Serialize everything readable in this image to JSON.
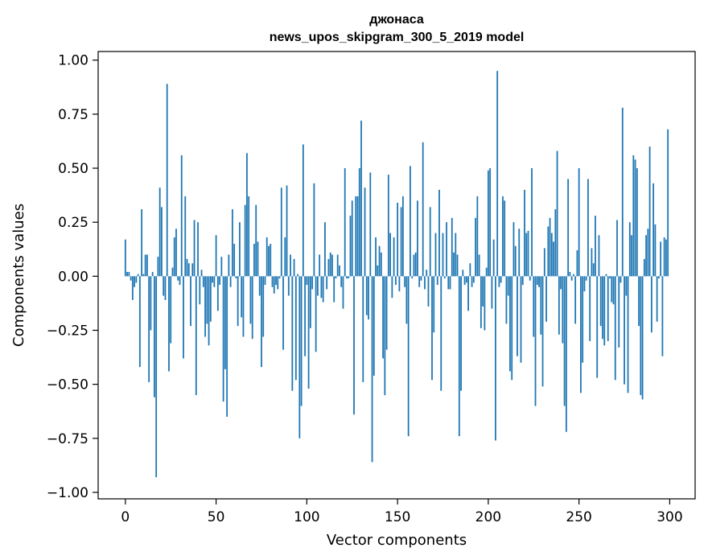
{
  "chart_data": {
    "type": "bar",
    "title": "джонаса",
    "subtitle": "news_upos_skipgram_300_5_2019 model",
    "xlabel": "Vector components",
    "ylabel": "Components values",
    "xlim": [
      -15,
      314
    ],
    "ylim": [
      -1.03,
      1.04
    ],
    "xticks": [
      0,
      50,
      100,
      150,
      200,
      250,
      300
    ],
    "xtick_labels": [
      "0",
      "50",
      "100",
      "150",
      "200",
      "250",
      "300"
    ],
    "yticks": [
      1.0,
      0.75,
      0.5,
      0.25,
      0.0,
      -0.25,
      -0.5,
      -0.75,
      -1.0
    ],
    "ytick_labels": [
      "1.00",
      "0.75",
      "0.50",
      "0.25",
      "0.00",
      "−0.25",
      "−0.50",
      "−0.75",
      "−1.00"
    ],
    "grid": false,
    "bar_color": "#1f77b4",
    "values": [
      0.17,
      0.02,
      0.02,
      -0.02,
      -0.11,
      -0.05,
      -0.03,
      0.01,
      -0.42,
      0.31,
      0.01,
      0.1,
      0.1,
      -0.49,
      -0.25,
      0.02,
      -0.56,
      -0.93,
      0.09,
      0.41,
      0.32,
      -0.09,
      -0.11,
      0.89,
      -0.44,
      -0.31,
      0.04,
      0.18,
      0.22,
      -0.02,
      -0.04,
      0.56,
      -0.38,
      0.37,
      0.08,
      0.06,
      -0.23,
      0.06,
      0.26,
      -0.55,
      0.25,
      -0.13,
      0.03,
      -0.05,
      -0.28,
      -0.22,
      -0.32,
      -0.21,
      -0.03,
      -0.05,
      0.19,
      -0.16,
      -0.04,
      0.09,
      -0.58,
      -0.43,
      -0.65,
      0.1,
      -0.05,
      0.31,
      0.15,
      -0.01,
      -0.23,
      0.25,
      -0.19,
      -0.28,
      0.33,
      0.57,
      0.37,
      -0.22,
      -0.29,
      0.15,
      0.33,
      0.16,
      -0.09,
      -0.42,
      -0.28,
      -0.04,
      0.18,
      0.14,
      0.15,
      -0.05,
      -0.08,
      -0.04,
      -0.06,
      -0.01,
      0.41,
      -0.34,
      0.18,
      0.42,
      -0.09,
      0.1,
      -0.53,
      0.08,
      -0.48,
      0.01,
      -0.75,
      -0.6,
      0.61,
      -0.37,
      -0.04,
      -0.52,
      -0.24,
      -0.06,
      0.43,
      -0.35,
      -0.09,
      0.1,
      -0.1,
      -0.12,
      0.25,
      -0.06,
      0.08,
      0.11,
      0.1,
      -0.12,
      -0.01,
      0.1,
      0.05,
      -0.05,
      -0.15,
      0.5,
      -0.01,
      -0.01,
      0.28,
      0.35,
      -0.64,
      0.37,
      0.37,
      0.5,
      0.72,
      -0.49,
      0.41,
      -0.18,
      -0.2,
      0.48,
      -0.86,
      -0.46,
      0.18,
      0.05,
      0.14,
      0.11,
      -0.38,
      -0.55,
      -0.34,
      0.47,
      0.2,
      -0.1,
      0.18,
      -0.04,
      0.34,
      -0.07,
      0.32,
      0.37,
      -0.05,
      -0.22,
      -0.74,
      0.51,
      -0.01,
      0.1,
      0.11,
      0.35,
      -0.05,
      -0.02,
      0.62,
      -0.06,
      0.03,
      -0.14,
      0.32,
      -0.48,
      -0.26,
      0.2,
      -0.04,
      0.4,
      -0.53,
      0.2,
      -0.01,
      0.25,
      -0.06,
      -0.06,
      0.27,
      0.11,
      0.2,
      0.1,
      -0.74,
      -0.53,
      0.03,
      -0.04,
      -0.03,
      -0.16,
      0.06,
      -0.05,
      -0.03,
      0.27,
      0.37,
      0.1,
      -0.24,
      -0.14,
      -0.25,
      0.04,
      0.49,
      0.5,
      -0.15,
      0.17,
      -0.76,
      0.95,
      -0.05,
      -0.03,
      0.37,
      0.35,
      -0.22,
      -0.09,
      -0.44,
      -0.48,
      0.25,
      0.14,
      -0.37,
      0.22,
      -0.4,
      -0.04,
      0.4,
      0.2,
      0.21,
      -0.02,
      0.5,
      -0.28,
      -0.6,
      -0.04,
      -0.05,
      -0.27,
      -0.51,
      0.13,
      -0.21,
      0.23,
      0.27,
      0.2,
      0.16,
      0.31,
      0.58,
      -0.27,
      -0.06,
      -0.31,
      -0.6,
      -0.72,
      0.45,
      0.02,
      -0.02,
      0.01,
      -0.22,
      0.12,
      0.5,
      -0.54,
      -0.4,
      -0.07,
      -0.02,
      0.45,
      -0.3,
      0.13,
      0.06,
      0.28,
      -0.47,
      0.19,
      -0.23,
      -0.29,
      -0.32,
      0.01,
      -0.3,
      -0.01,
      -0.12,
      -0.13,
      -0.48,
      0.26,
      -0.33,
      -0.03,
      0.78,
      -0.5,
      -0.09,
      -0.54,
      0.25,
      0.19,
      0.56,
      0.54,
      0.5,
      -0.23,
      -0.55,
      -0.57,
      0.08,
      0.19,
      0.22,
      0.6,
      -0.26,
      0.43,
      0.24,
      -0.21,
      -0.01,
      0.16,
      -0.37,
      0.18,
      0.17,
      0.68
    ]
  }
}
